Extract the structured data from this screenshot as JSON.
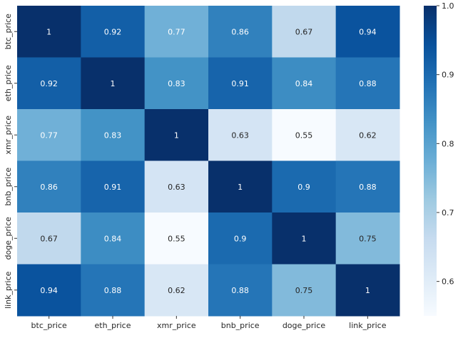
{
  "chart_data": {
    "type": "heatmap",
    "title": "",
    "xlabel": "",
    "ylabel": "",
    "x_categories": [
      "btc_price",
      "eth_price",
      "xmr_price",
      "bnb_price",
      "doge_price",
      "link_price"
    ],
    "y_categories": [
      "btc_price",
      "eth_price",
      "xmr_price",
      "bnb_price",
      "doge_price",
      "link_price"
    ],
    "values": [
      [
        1,
        0.92,
        0.77,
        0.86,
        0.67,
        0.94
      ],
      [
        0.92,
        1,
        0.83,
        0.91,
        0.84,
        0.88
      ],
      [
        0.77,
        0.83,
        1,
        0.63,
        0.55,
        0.62
      ],
      [
        0.86,
        0.91,
        0.63,
        1,
        0.9,
        0.88
      ],
      [
        0.67,
        0.84,
        0.55,
        0.9,
        1,
        0.75
      ],
      [
        0.94,
        0.88,
        0.62,
        0.88,
        0.75,
        1
      ]
    ],
    "annotations": [
      [
        "1",
        "0.92",
        "0.77",
        "0.86",
        "0.67",
        "0.94"
      ],
      [
        "0.92",
        "1",
        "0.83",
        "0.91",
        "0.84",
        "0.88"
      ],
      [
        "0.77",
        "0.83",
        "1",
        "0.63",
        "0.55",
        "0.62"
      ],
      [
        "0.86",
        "0.91",
        "0.63",
        "1",
        "0.9",
        "0.88"
      ],
      [
        "0.67",
        "0.84",
        "0.55",
        "0.9",
        "1",
        "0.75"
      ],
      [
        "0.94",
        "0.88",
        "0.62",
        "0.88",
        "0.75",
        "1"
      ]
    ],
    "colorbar": {
      "vmin": 0.55,
      "vmax": 1.0,
      "ticks": [
        0.6,
        0.7,
        0.8,
        0.9,
        1.0
      ],
      "tick_labels": [
        "0.6",
        "0.7",
        "0.8",
        "0.9",
        "1.0"
      ],
      "colormap": "Blues",
      "colors": [
        "#f7fbff",
        "#deebf7",
        "#c6dbef",
        "#9ecae1",
        "#6baed6",
        "#4292c6",
        "#2171b5",
        "#08519c",
        "#08306b"
      ]
    },
    "grid": false,
    "legend": "colorbar-right"
  }
}
